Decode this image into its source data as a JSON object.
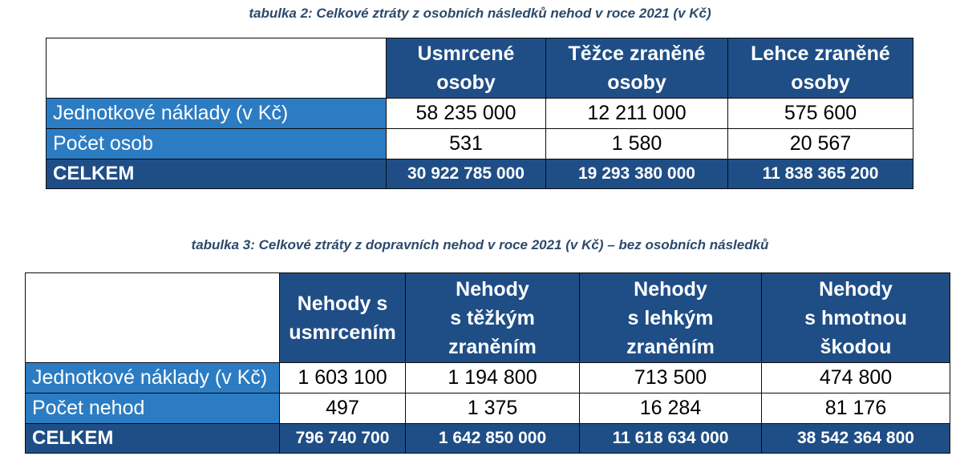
{
  "table2": {
    "caption": "tabulka 2: Celkové ztráty z osobních následků nehod v roce 2021 (v Kč)",
    "columns": [
      {
        "line1": "Usmrcené",
        "line2": "osoby"
      },
      {
        "line1": "Těžce zraněné",
        "line2": "osoby"
      },
      {
        "line1": "Lehce zraněné",
        "line2": "osoby"
      }
    ],
    "rows": [
      {
        "label": "Jednotkové náklady (v Kč)",
        "values": [
          "58 235 000",
          "12 211 000",
          "575 600"
        ]
      },
      {
        "label": "Počet osob",
        "values": [
          "531",
          "1 580",
          "20 567"
        ]
      }
    ],
    "total": {
      "label": "CELKEM",
      "values": [
        "30 922 785 000",
        "19 293 380 000",
        "11 838 365 200"
      ]
    }
  },
  "table3": {
    "caption": "tabulka 3: Celkové ztráty z dopravních nehod v roce 2021 (v Kč) – bez osobních následků",
    "columns": [
      {
        "line1": "Nehody s",
        "line2": "usmrcením",
        "line3": ""
      },
      {
        "line1": "Nehody",
        "line2": "s těžkým",
        "line3": "zraněním"
      },
      {
        "line1": "Nehody",
        "line2": "s lehkým",
        "line3": "zraněním"
      },
      {
        "line1": "Nehody",
        "line2": "s hmotnou",
        "line3": "škodou"
      }
    ],
    "rows": [
      {
        "label": "Jednotkové náklady (v Kč)",
        "values": [
          "1 603 100",
          "1 194 800",
          "713 500",
          "474 800"
        ]
      },
      {
        "label": "Počet nehod",
        "values": [
          "497",
          "1 375",
          "16 284",
          "81 176"
        ]
      }
    ],
    "total": {
      "label": "CELKEM",
      "values": [
        "796 740 700",
        "1 642 850 000",
        "11 618 634 000",
        "38 542 364 800"
      ]
    }
  },
  "colors": {
    "header_dark_blue": "#1f4e86",
    "row_label_blue": "#2b7cc3",
    "caption_text": "#2c4a6b"
  }
}
